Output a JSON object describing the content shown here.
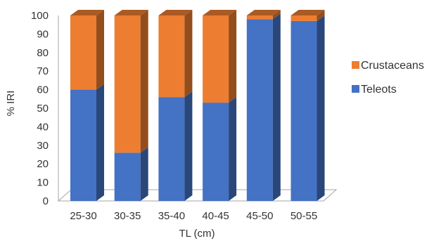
{
  "chart_data": {
    "type": "bar",
    "stacked": true,
    "style": "3d",
    "categories": [
      "25-30",
      "30-35",
      "35-40",
      "40-45",
      "45-50",
      "50-55"
    ],
    "series": [
      {
        "name": "Teleots",
        "color": "#4472c4",
        "values": [
          60,
          26,
          56,
          53,
          98,
          97
        ]
      },
      {
        "name": "Crustaceans",
        "color": "#ed7d31",
        "values": [
          40,
          74,
          44,
          47,
          2,
          3
        ]
      }
    ],
    "yticks": [
      "0",
      "10",
      "20",
      "30",
      "40",
      "50",
      "60",
      "70",
      "80",
      "90",
      "100"
    ],
    "ylim": [
      0,
      100
    ],
    "xlabel": "TL (cm)",
    "ylabel": "% IRI",
    "legend_position": "right",
    "grid": false
  }
}
